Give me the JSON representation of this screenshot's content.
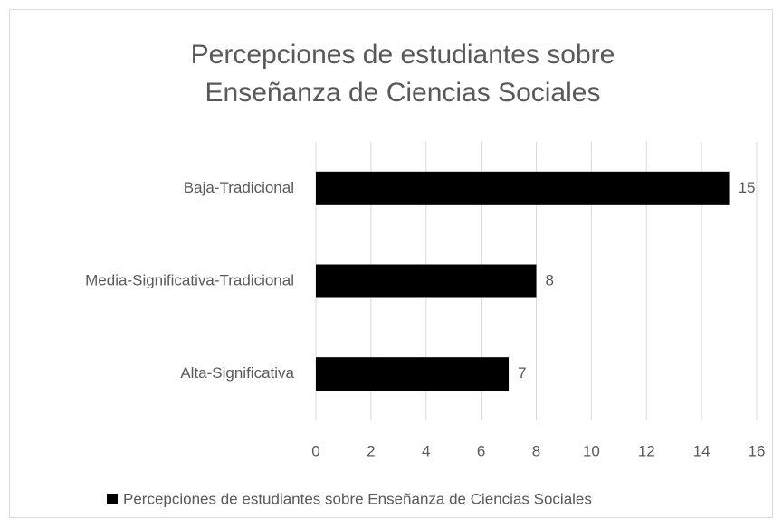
{
  "chart_data": {
    "type": "bar",
    "orientation": "horizontal",
    "title": [
      "Percepciones de estudiantes sobre",
      "Enseñanza de Ciencias Sociales"
    ],
    "categories": [
      "Baja-Tradicional",
      "Media-Significativa-Tradicional",
      "Alta-Significativa"
    ],
    "series": [
      {
        "name": "Percepciones de estudiantes sobre Enseñanza de Ciencias Sociales",
        "color": "#000000",
        "values": [
          15,
          8,
          7
        ]
      }
    ],
    "xlim": [
      0,
      16
    ],
    "xticks": [
      0,
      2,
      4,
      6,
      8,
      10,
      12,
      14,
      16
    ],
    "grid": true,
    "legend": "bottom"
  }
}
